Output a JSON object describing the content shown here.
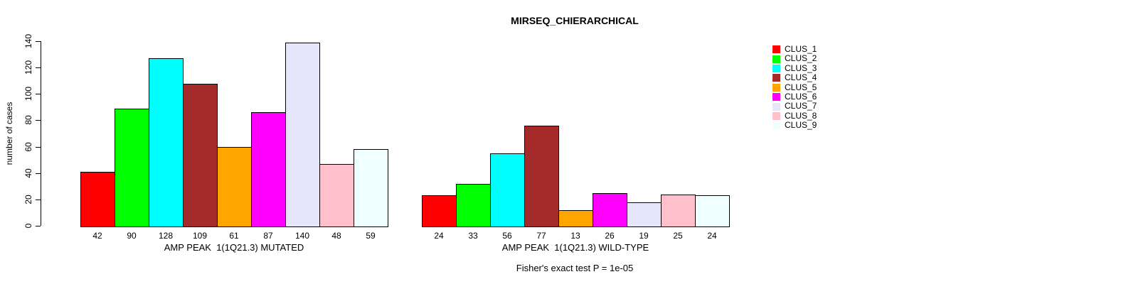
{
  "chart_data": {
    "type": "bar",
    "title": "MIRSEQ_CHIERARCHICAL",
    "ylabel": "number of cases",
    "ylim": [
      0,
      140
    ],
    "yticks": [
      0,
      20,
      40,
      60,
      80,
      100,
      120,
      140
    ],
    "grid": false,
    "legend_position": "top-right",
    "series_labels": [
      "CLUS_1",
      "CLUS_2",
      "CLUS_3",
      "CLUS_4",
      "CLUS_5",
      "CLUS_6",
      "CLUS_7",
      "CLUS_8",
      "CLUS_9"
    ],
    "series_colors": [
      "#FF0000",
      "#00FF00",
      "#00FFFF",
      "#A52A2A",
      "#FFA500",
      "#FF00FF",
      "#E6E6FA",
      "#FFC0CB",
      "#F0FFFF"
    ],
    "bar_border_color": "#000000",
    "groups": [
      {
        "label": "AMP PEAK  1(1Q21.3) MUTATED",
        "values": [
          42,
          90,
          128,
          109,
          61,
          87,
          140,
          48,
          59
        ]
      },
      {
        "label": "AMP PEAK  1(1Q21.3) WILD-TYPE",
        "values": [
          24,
          33,
          56,
          77,
          13,
          26,
          19,
          25,
          24
        ]
      }
    ],
    "annotation": "Fisher's exact test P = 1e-05"
  }
}
